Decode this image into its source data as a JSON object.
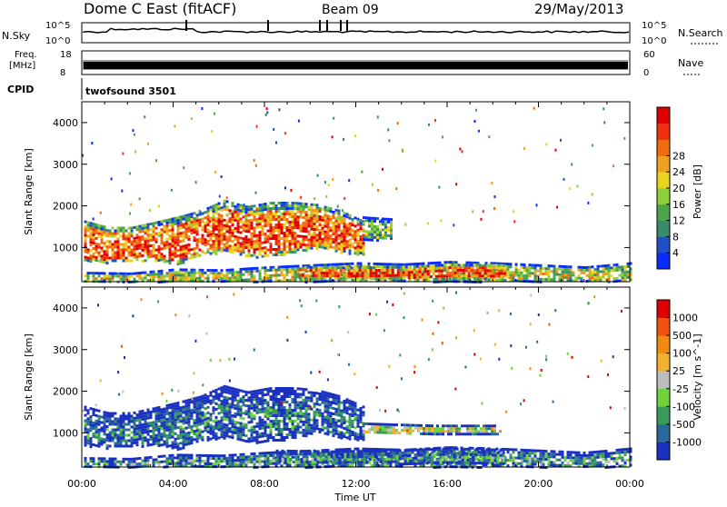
{
  "header": {
    "radar": "Dome C East (fitACF)",
    "beam": "Beam 09",
    "date": "29/May/2013"
  },
  "top_panels": {
    "nsky_label": "N.Sky",
    "nsky_ticks": [
      "10^5",
      "10^0"
    ],
    "nsearch_label": "N.Search",
    "nsearch_ticks": [
      "10^5",
      "10^0"
    ],
    "freq_label_1": "Freq.",
    "freq_label_2": "[MHz]",
    "freq_ticks": [
      "18",
      "8"
    ],
    "nave_label": "Nave",
    "nave_ticks": [
      "60",
      "0"
    ],
    "cpid_label": "CPID",
    "cpid_value": "twofsound 3501"
  },
  "chart_data": [
    {
      "type": "heatmap",
      "name": "power",
      "ylabel": "Slant Range [km]",
      "yticks": [
        "1000",
        "2000",
        "3000",
        "4000"
      ],
      "ylim": [
        180,
        4500
      ],
      "xlim": [
        0,
        24
      ],
      "colorbar_label": "Power [dB]",
      "colorbar_ticks": [
        "4",
        "8",
        "12",
        "16",
        "20",
        "24",
        "28"
      ],
      "colorbar_colors": [
        "#0a2bff",
        "#2050c8",
        "#3a8a6e",
        "#4aa64a",
        "#8ccf3a",
        "#e8d41e",
        "#f0a020",
        "#f06a10",
        "#f03010",
        "#e00000"
      ],
      "bands": [
        {
          "t0": 0.1,
          "t1": 12.3,
          "r_lo": [
            700,
            650,
            700,
            700,
            620,
            820,
            900,
            800,
            780,
            900,
            1000,
            900,
            850
          ],
          "r_hi": [
            1650,
            1500,
            1500,
            1620,
            1750,
            1900,
            2150,
            2000,
            2100,
            2100,
            2050,
            1900,
            1650
          ],
          "level": 0.85
        },
        {
          "t0": 12.3,
          "t1": 13.6,
          "r_lo": [
            1200,
            1200
          ],
          "r_hi": [
            1750,
            1700
          ],
          "level": 0.45
        },
        {
          "t0": 0.1,
          "t1": 24,
          "r_lo": [
            200,
            200,
            200,
            200,
            200,
            200,
            200,
            200,
            200,
            200,
            200,
            200,
            200
          ],
          "r_hi": [
            420,
            400,
            500,
            480,
            550,
            600,
            650,
            620,
            680,
            650,
            600,
            550,
            650
          ],
          "level": 0.55
        },
        {
          "t0": 9.5,
          "t1": 18.5,
          "r_lo": [
            280,
            280,
            280,
            280,
            280
          ],
          "r_hi": [
            560,
            540,
            560,
            620,
            600
          ],
          "level": 0.9
        }
      ]
    },
    {
      "type": "heatmap",
      "name": "velocity",
      "xlabel": "Time UT",
      "xticks": [
        "00:00",
        "04:00",
        "08:00",
        "12:00",
        "16:00",
        "20:00",
        "00:00"
      ],
      "ylabel": "Slant Range [km]",
      "yticks": [
        "1000",
        "2000",
        "3000",
        "4000"
      ],
      "ylim": [
        180,
        4500
      ],
      "xlim": [
        0,
        24
      ],
      "colorbar_label": "Velocity [m s^-1]",
      "colorbar_ticks": [
        "1000",
        "500",
        "100",
        "25",
        "-25",
        "-100",
        "-500",
        "-1000"
      ],
      "colorbar_colors": [
        "#1a30c0",
        "#2a6a9a",
        "#3a9a5a",
        "#6ed23a",
        "#bdbdbd",
        "#f0b030",
        "#f08a10",
        "#f05010",
        "#e00000"
      ],
      "bands": [
        {
          "t0": 0.1,
          "t1": 12.3,
          "r_lo": [
            700,
            650,
            700,
            700,
            620,
            820,
            900,
            800,
            780,
            900,
            1000,
            900,
            850
          ],
          "r_hi": [
            1650,
            1500,
            1500,
            1620,
            1750,
            1900,
            2150,
            2000,
            2100,
            2100,
            2050,
            1900,
            1650
          ],
          "level": 0.2
        },
        {
          "t0": 12.3,
          "t1": 18.3,
          "r_lo": [
            1000,
            1000,
            1000
          ],
          "r_hi": [
            1250,
            1200,
            1200
          ],
          "level": 0.55
        },
        {
          "t0": 0.1,
          "t1": 24,
          "r_lo": [
            200,
            200,
            200,
            200,
            200,
            200,
            200,
            200,
            200,
            200,
            200,
            200,
            200
          ],
          "r_hi": [
            420,
            400,
            500,
            480,
            550,
            600,
            650,
            620,
            680,
            650,
            600,
            550,
            650
          ],
          "level": 0.3
        },
        {
          "t0": 8.5,
          "t1": 18.5,
          "r_lo": [
            280,
            280,
            280,
            280,
            280
          ],
          "r_hi": [
            600,
            580,
            600,
            650,
            620
          ],
          "level": 0.25
        }
      ]
    }
  ]
}
